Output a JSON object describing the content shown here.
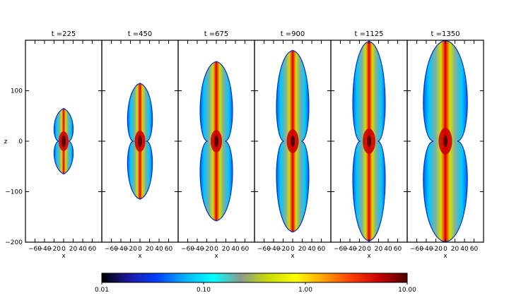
{
  "panels": [
    {
      "title": "t =225",
      "z_extent": 65
    },
    {
      "title": "t =450",
      "z_extent": 115
    },
    {
      "title": "t =675",
      "z_extent": 158
    },
    {
      "title": "t =900",
      "z_extent": 180
    },
    {
      "title": "t =1125",
      "z_extent": 198
    },
    {
      "title": "t =1350",
      "z_extent": 200
    }
  ],
  "axes": {
    "x_label": "x",
    "z_label": "z",
    "x_range": [
      -80,
      80
    ],
    "z_range": [
      -200,
      200
    ],
    "x_ticks": [
      "−60",
      "−40",
      "−20",
      "0",
      "20",
      "40",
      "60"
    ],
    "x_tick_values": [
      -60,
      -40,
      -20,
      0,
      20,
      40,
      60
    ],
    "z_ticks": [
      "100",
      "0",
      "−100",
      "−200"
    ],
    "z_tick_values": [
      100,
      0,
      -100,
      -200
    ]
  },
  "colorbar": {
    "scale": "log",
    "range": [
      0.01,
      10
    ],
    "tick_labels": [
      "0.01",
      "0.10",
      "1.00",
      "10.00"
    ],
    "tick_values": [
      0.01,
      0.1,
      1,
      10
    ],
    "colors": [
      "#000000",
      "#1a1aa6",
      "#0040ff",
      "#00b4ff",
      "#00ffff",
      "#8c9a8c",
      "#c8dc00",
      "#ffff00",
      "#ffa000",
      "#ff3c00",
      "#c80000",
      "#500000"
    ]
  }
}
